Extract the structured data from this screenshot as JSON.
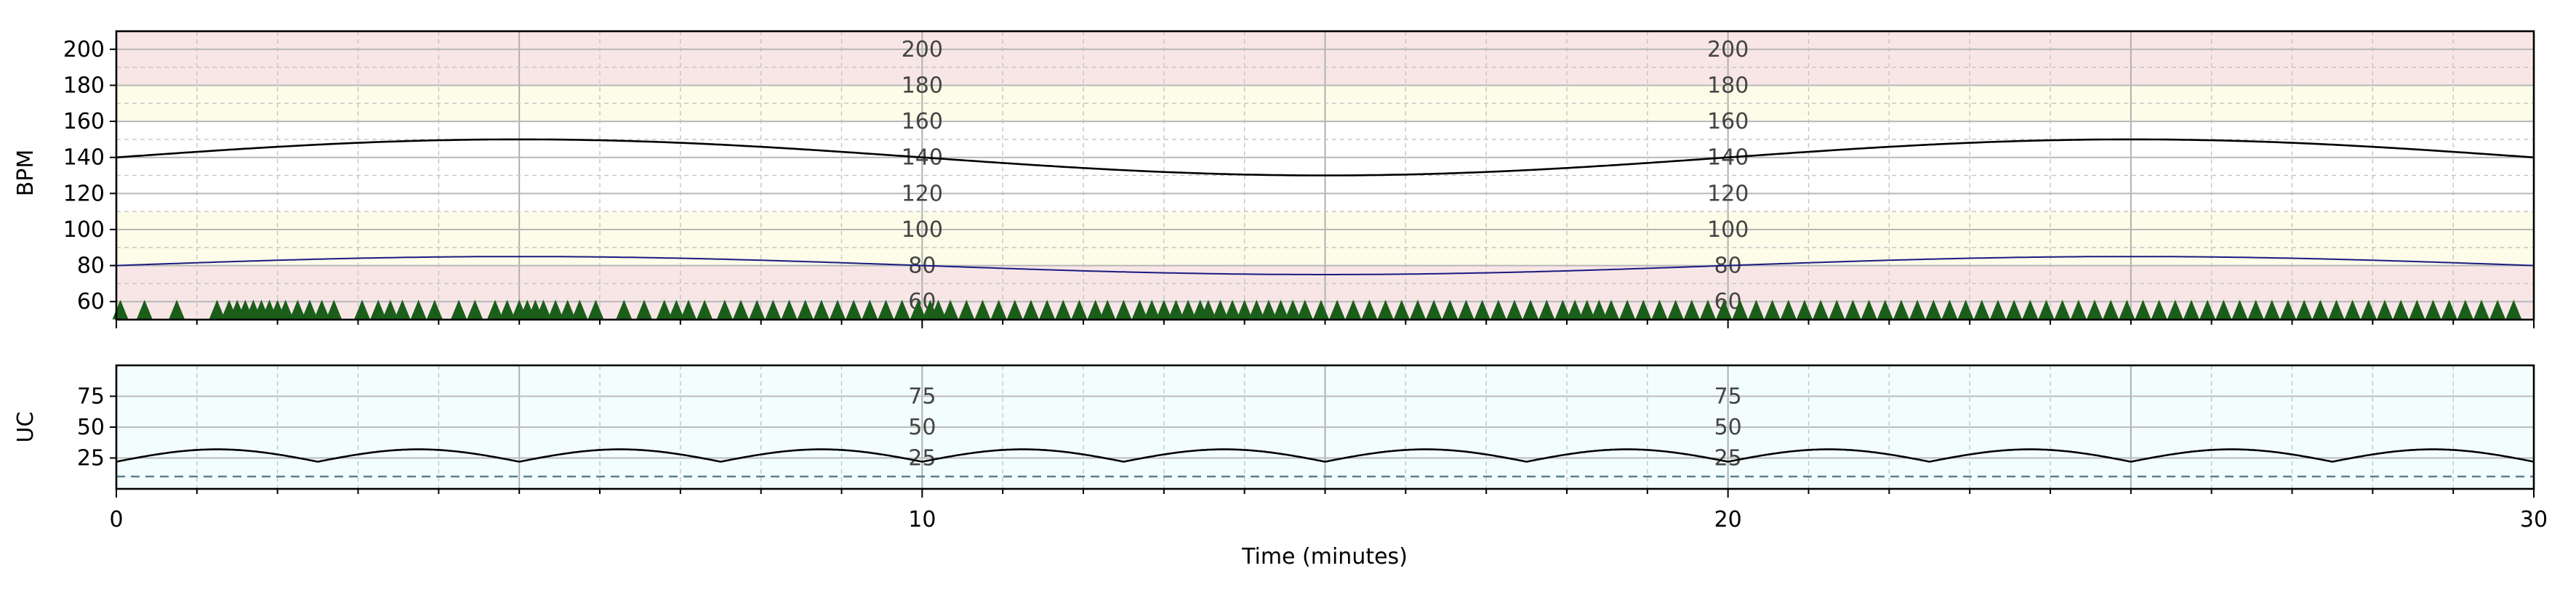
{
  "chart_data": [
    {
      "type": "line",
      "panel": "fhr",
      "ylabel": "BPM",
      "xlim": [
        0,
        30
      ],
      "ylim": [
        50,
        210
      ],
      "yticks": [
        60,
        80,
        100,
        120,
        140,
        160,
        180,
        200
      ],
      "y_scale_labels": [
        "200",
        "180",
        "160",
        "140",
        "120",
        "100",
        "80",
        "60"
      ],
      "y_scale_label_x_minutes": [
        10,
        20
      ],
      "bands": [
        {
          "from": 50,
          "to": 60,
          "color": "#f8e6e6"
        },
        {
          "from": 60,
          "to": 80,
          "color": "#f8e6e6"
        },
        {
          "from": 80,
          "to": 110,
          "color": "#fcfce8"
        },
        {
          "from": 110,
          "to": 160,
          "color": "#ffffff"
        },
        {
          "from": 160,
          "to": 180,
          "color": "#fcfce8"
        },
        {
          "from": 180,
          "to": 210,
          "color": "#f8e6e6"
        }
      ],
      "series": [
        {
          "color": "#000000",
          "baseline": 140,
          "amplitude": 10,
          "period_minutes": 20,
          "phase": "sine",
          "x": [
            0,
            2.5,
            5,
            7.5,
            10,
            12.5,
            15,
            17.5,
            20,
            22.5,
            25,
            27.5,
            30
          ],
          "values": [
            140,
            150,
            140,
            130,
            140,
            150,
            140,
            130,
            140,
            150,
            140,
            130,
            140
          ]
        },
        {
          "color": "#1a1a80",
          "baseline": 80,
          "amplitude": 5,
          "period_minutes": 20,
          "phase": "sine",
          "x": [
            0,
            5,
            10,
            15,
            20,
            25,
            30
          ],
          "values": [
            80,
            85,
            75,
            80,
            85,
            75,
            80
          ]
        }
      ],
      "markers": {
        "shape": "triangle-up",
        "color": "#1a5e1a",
        "y": 57,
        "x": [
          0.05,
          0.35,
          0.75,
          1.25,
          1.4,
          1.5,
          1.6,
          1.7,
          1.8,
          1.9,
          2.0,
          2.1,
          2.25,
          2.4,
          2.55,
          2.7,
          3.05,
          3.25,
          3.4,
          3.55,
          3.75,
          3.95,
          4.25,
          4.45,
          4.7,
          4.85,
          5.0,
          5.1,
          5.2,
          5.3,
          5.45,
          5.6,
          5.75,
          5.95,
          6.3,
          6.55,
          6.8,
          6.95,
          7.1,
          7.3,
          7.55,
          7.75,
          7.95,
          8.15,
          8.35,
          8.55,
          8.75,
          8.95,
          9.15,
          9.35,
          9.55,
          9.75,
          9.95,
          10.1,
          10.2,
          10.35,
          10.55,
          10.75,
          10.95,
          11.15,
          11.35,
          11.55,
          11.75,
          11.95,
          12.15,
          12.3,
          12.5,
          12.7,
          12.85,
          13.0,
          13.15,
          13.3,
          13.45,
          13.55,
          13.7,
          13.85,
          14.0,
          14.15,
          14.3,
          14.45,
          14.6,
          14.75,
          14.95,
          15.15,
          15.35,
          15.55,
          15.75,
          15.95,
          16.15,
          16.35,
          16.55,
          16.75,
          16.95,
          17.15,
          17.35,
          17.55,
          17.75,
          17.95,
          18.1,
          18.25,
          18.4,
          18.55,
          18.75,
          18.95,
          19.15,
          19.35,
          19.55,
          19.75,
          19.95,
          20.15,
          20.35,
          20.55,
          20.75,
          20.95,
          21.15,
          21.35,
          21.55,
          21.75,
          21.95,
          22.15,
          22.35,
          22.55,
          22.75,
          22.95,
          23.15,
          23.35,
          23.55,
          23.75,
          23.95,
          24.15,
          24.35,
          24.55,
          24.75,
          24.95,
          25.15,
          25.35,
          25.55,
          25.75,
          25.95,
          26.15,
          26.35,
          26.55,
          26.75,
          26.95,
          27.15,
          27.35,
          27.55,
          27.75,
          27.95,
          28.15,
          28.35,
          28.55,
          28.75,
          28.95,
          29.15,
          29.35,
          29.55,
          29.75
        ]
      },
      "grid": true
    },
    {
      "type": "line",
      "panel": "uc",
      "ylabel": "UC",
      "xlabel": "Time (minutes)",
      "xlim": [
        0,
        30
      ],
      "ylim": [
        0,
        100
      ],
      "yticks": [
        25,
        50,
        75
      ],
      "xticks": [
        0,
        10,
        20,
        30
      ],
      "y_scale_labels": [
        "75",
        "50",
        "25"
      ],
      "y_scale_label_x_minutes": [
        10,
        20
      ],
      "background": "#f2fdfd",
      "series": [
        {
          "color": "#000000",
          "baseline": 22,
          "peak": 32,
          "period_minutes": 2.5,
          "x": [
            0,
            1.25,
            2.5,
            3.75,
            5,
            6.25,
            7.5,
            8.75,
            10,
            11.25,
            12.5,
            13.75,
            15,
            16.25,
            17.5,
            18.75,
            20,
            21.25,
            22.5,
            23.75,
            25,
            26.25,
            27.5,
            28.75,
            30
          ],
          "values": [
            22,
            32,
            22,
            32,
            22,
            32,
            22,
            32,
            22,
            32,
            22,
            32,
            22,
            32,
            22,
            32,
            22,
            32,
            22,
            32,
            22,
            32,
            22,
            32,
            22
          ]
        }
      ],
      "reference_line": {
        "y": 10,
        "style": "dashed",
        "color": "#5f7f8a"
      },
      "grid": true
    }
  ]
}
